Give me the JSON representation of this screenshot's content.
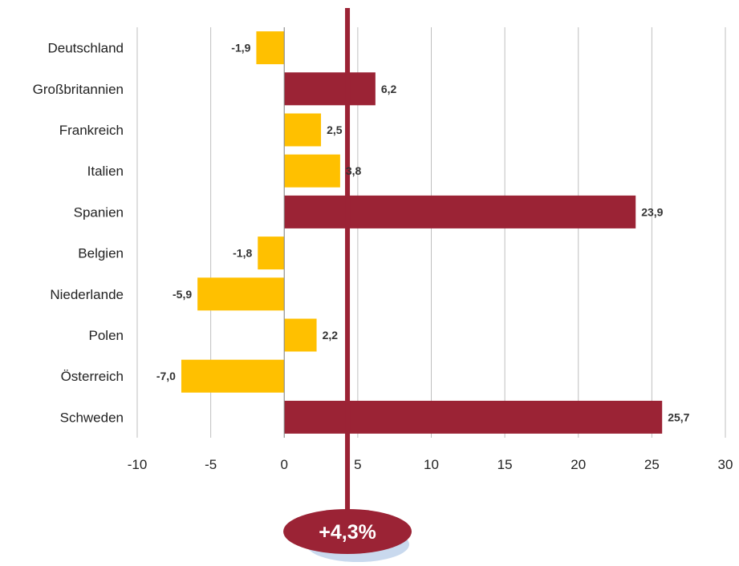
{
  "chart_data": {
    "type": "bar",
    "orientation": "horizontal",
    "categories": [
      "Deutschland",
      "Großbritannien",
      "Frankreich",
      "Italien",
      "Spanien",
      "Belgien",
      "Niederlande",
      "Polen",
      "Österreich",
      "Schweden"
    ],
    "values": [
      -1.9,
      6.2,
      2.5,
      3.8,
      23.9,
      -1.8,
      -5.9,
      2.2,
      -7.0,
      25.7
    ],
    "data_labels": [
      "-1,9",
      "6,2",
      "2,5",
      "3,8",
      "23,9",
      "-1,8",
      "-5,9",
      "2,2",
      "-7,0",
      "25,7"
    ],
    "highlighted": [
      false,
      true,
      false,
      false,
      true,
      false,
      false,
      false,
      false,
      true
    ],
    "xlim": [
      -10,
      30
    ],
    "xticks": [
      -10,
      -5,
      0,
      5,
      10,
      15,
      20,
      25,
      30
    ],
    "xtick_labels": [
      "-10",
      "-5",
      "0",
      "5",
      "10",
      "15",
      "20",
      "25",
      "30"
    ],
    "grid": "vertical",
    "reference_line": {
      "value": 4.3,
      "label": "+4,3%"
    },
    "title": "",
    "xlabel": "",
    "ylabel": ""
  },
  "colors": {
    "normal_bar": "#FFC000",
    "highlight_bar": "#9B2335",
    "reference_line": "#9B2335",
    "reference_badge": "#9B2335",
    "badge_shadow": "#C9D9EE",
    "grid": "#BFBFBF",
    "axis": "#888888"
  }
}
